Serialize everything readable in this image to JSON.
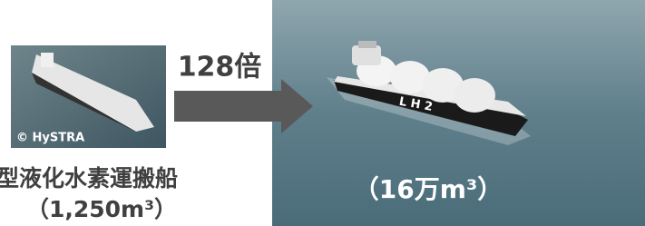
{
  "left_photo": {
    "credit": "© HySTRA"
  },
  "ratio_label": "128倍",
  "left_caption": {
    "name": "型液化水素運搬船",
    "capacity": "（1,250m³）"
  },
  "right_caption": {
    "capacity": "（16万m³）"
  }
}
